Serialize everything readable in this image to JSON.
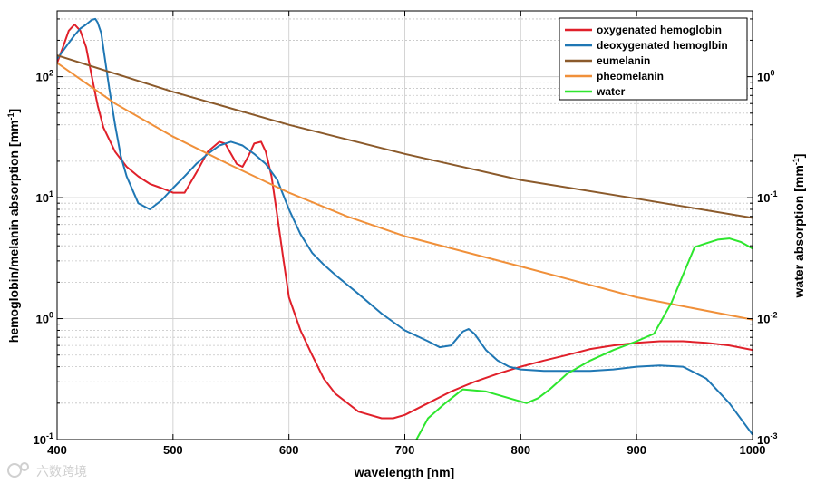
{
  "chart_data": {
    "type": "line",
    "title": "",
    "xlabel": "wavelength [nm]",
    "ylabel_left": "hemoglobin/melanin absorption [mm⁻¹]",
    "ylabel_left_text": "hemoglobin/melanin absorption [mm",
    "ylabel_right_text": "water absorption [mm",
    "ylabel_sup": "-1",
    "ylabel_tail": "]",
    "xlim": [
      400,
      1000
    ],
    "ylim_left": [
      0.1,
      350
    ],
    "ylim_right": [
      0.001,
      3.5
    ],
    "yscale": "log",
    "grid": true,
    "legend_position": "top-right",
    "x_ticks": [
      "400",
      "500",
      "600",
      "700",
      "800",
      "900",
      "1000"
    ],
    "x_tick_values": [
      400,
      500,
      600,
      700,
      800,
      900,
      1000
    ],
    "left_ticks": [
      {
        "value": 0.1,
        "base": "10",
        "exp": "-1"
      },
      {
        "value": 1,
        "base": "10",
        "exp": "0"
      },
      {
        "value": 10,
        "base": "10",
        "exp": "1"
      },
      {
        "value": 100,
        "base": "10",
        "exp": "2"
      }
    ],
    "right_ticks": [
      {
        "value": 0.001,
        "base": "10",
        "exp": "-3"
      },
      {
        "value": 0.01,
        "base": "10",
        "exp": "-2"
      },
      {
        "value": 0.1,
        "base": "10",
        "exp": "-1"
      },
      {
        "value": 1,
        "base": "10",
        "exp": "0"
      }
    ],
    "series": [
      {
        "name": "oxygenated hemoglobin",
        "axis": "left",
        "color": "#e0202a",
        "x": [
          400,
          405,
          410,
          415,
          420,
          425,
          430,
          435,
          440,
          450,
          460,
          470,
          480,
          490,
          500,
          510,
          520,
          530,
          540,
          545,
          550,
          555,
          560,
          565,
          570,
          576,
          580,
          585,
          590,
          595,
          600,
          610,
          620,
          630,
          640,
          660,
          680,
          690,
          700,
          720,
          740,
          760,
          780,
          800,
          820,
          840,
          860,
          880,
          900,
          920,
          940,
          960,
          980,
          1000
        ],
        "values": [
          130,
          175,
          240,
          270,
          240,
          175,
          100,
          58,
          38,
          24,
          18,
          15,
          13,
          12,
          11,
          11,
          16,
          24,
          29,
          28,
          23,
          19,
          18,
          22,
          28,
          29,
          24,
          15,
          7,
          3.2,
          1.5,
          0.8,
          0.5,
          0.32,
          0.24,
          0.17,
          0.15,
          0.15,
          0.16,
          0.2,
          0.25,
          0.3,
          0.35,
          0.4,
          0.45,
          0.5,
          0.56,
          0.6,
          0.63,
          0.65,
          0.65,
          0.63,
          0.6,
          0.55
        ]
      },
      {
        "name": "deoxygenated hemoglbin",
        "axis": "left",
        "color": "#1f77b4",
        "x": [
          400,
          410,
          415,
          420,
          425,
          430,
          433,
          435,
          438,
          440,
          445,
          450,
          455,
          460,
          470,
          480,
          490,
          500,
          510,
          520,
          530,
          540,
          550,
          555,
          560,
          570,
          580,
          590,
          600,
          610,
          620,
          630,
          640,
          660,
          680,
          700,
          720,
          730,
          740,
          750,
          755,
          760,
          770,
          780,
          790,
          800,
          820,
          840,
          860,
          880,
          900,
          920,
          940,
          960,
          980,
          1000
        ],
        "values": [
          140,
          190,
          220,
          250,
          270,
          295,
          300,
          280,
          230,
          170,
          80,
          40,
          22,
          15,
          9,
          8,
          9.5,
          12,
          15,
          19,
          23,
          27,
          29,
          28,
          27,
          23,
          19,
          14,
          8,
          5,
          3.5,
          2.8,
          2.3,
          1.6,
          1.1,
          0.8,
          0.65,
          0.58,
          0.6,
          0.78,
          0.82,
          0.75,
          0.55,
          0.45,
          0.4,
          0.38,
          0.37,
          0.37,
          0.37,
          0.38,
          0.4,
          0.41,
          0.4,
          0.32,
          0.2,
          0.11
        ]
      },
      {
        "name": "eumelanin",
        "axis": "left",
        "color": "#8b5a2b",
        "x": [
          400,
          500,
          600,
          700,
          800,
          900,
          1000
        ],
        "values": [
          150,
          75,
          40,
          23,
          14,
          9.8,
          6.8
        ]
      },
      {
        "name": "pheomelanin",
        "axis": "left",
        "color": "#f0903a",
        "x": [
          400,
          450,
          500,
          550,
          600,
          650,
          700,
          800,
          900,
          1000
        ],
        "values": [
          130,
          60,
          32,
          18.5,
          11,
          7,
          4.8,
          2.7,
          1.5,
          0.98
        ]
      },
      {
        "name": "water",
        "axis": "right",
        "color": "#2ee62e",
        "x": [
          710,
          720,
          735,
          750,
          770,
          790,
          805,
          815,
          825,
          840,
          860,
          880,
          900,
          915,
          930,
          950,
          960,
          970,
          980,
          990,
          1000
        ],
        "values": [
          0.001,
          0.0015,
          0.002,
          0.0026,
          0.0025,
          0.0022,
          0.002,
          0.0022,
          0.0026,
          0.0035,
          0.0045,
          0.0055,
          0.0065,
          0.0075,
          0.0135,
          0.039,
          0.042,
          0.045,
          0.046,
          0.043,
          0.038
        ]
      }
    ]
  },
  "watermark": "六数跨境"
}
